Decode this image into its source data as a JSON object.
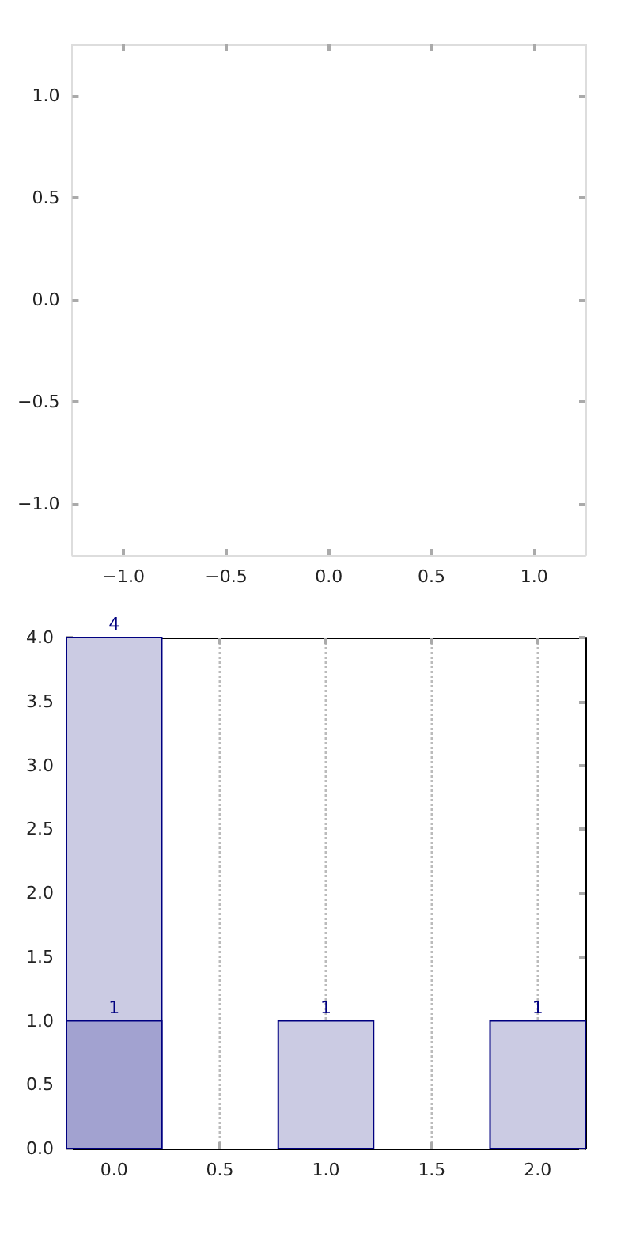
{
  "chart_data": [
    {
      "type": "scatter",
      "xlim": [
        -1.25,
        1.25
      ],
      "ylim": [
        -1.25,
        1.25
      ],
      "xticks": [
        {
          "value": -1,
          "label": "−1.0"
        },
        {
          "value": -0.5,
          "label": "−0.5"
        },
        {
          "value": 0,
          "label": "0.0"
        },
        {
          "value": 0.5,
          "label": "0.5"
        },
        {
          "value": 1,
          "label": "1.0"
        }
      ],
      "yticks": [
        {
          "value": -1,
          "label": "−1.0"
        },
        {
          "value": -0.5,
          "label": "−0.5"
        },
        {
          "value": 0,
          "label": "0.0"
        },
        {
          "value": 0.5,
          "label": "0.5"
        },
        {
          "value": 1,
          "label": "1.0"
        }
      ]
    },
    {
      "type": "bar",
      "xlim": [
        -0.225,
        2.225
      ],
      "ylim": [
        0,
        4
      ],
      "xticks": [
        {
          "value": 0,
          "label": "0.0"
        },
        {
          "value": 0.5,
          "label": "0.5"
        },
        {
          "value": 1,
          "label": "1.0"
        },
        {
          "value": 1.5,
          "label": "1.5"
        },
        {
          "value": 2,
          "label": "2.0"
        }
      ],
      "yticks": [
        {
          "value": 0,
          "label": "0.0"
        },
        {
          "value": 0.5,
          "label": "0.5"
        },
        {
          "value": 1,
          "label": "1.0"
        },
        {
          "value": 1.5,
          "label": "1.5"
        },
        {
          "value": 2,
          "label": "2.0"
        },
        {
          "value": 2.5,
          "label": "2.5"
        },
        {
          "value": 3,
          "label": "3.0"
        },
        {
          "value": 3.5,
          "label": "3.5"
        },
        {
          "value": 4,
          "label": "4.0"
        }
      ],
      "grid": "x",
      "data_labels": true,
      "series": [
        {
          "color": "#cbcbe3",
          "x": [
            0,
            1,
            2
          ],
          "values": [
            4,
            1,
            1
          ]
        },
        {
          "color": "#a2a2d0",
          "x": [
            0
          ],
          "values": [
            1
          ]
        }
      ]
    }
  ]
}
